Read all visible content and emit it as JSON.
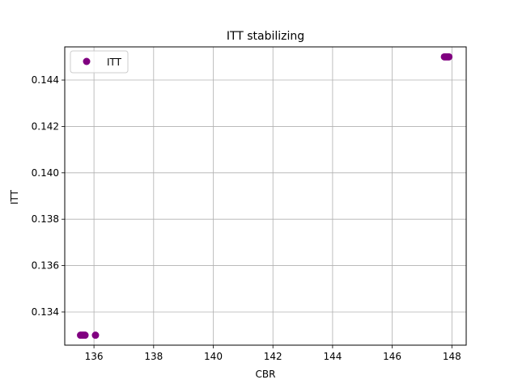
{
  "chart_data": {
    "type": "scatter",
    "title": "ITT stabilizing",
    "xlabel": "CBR",
    "ylabel": "ITT",
    "xlim": [
      135.02,
      148.48
    ],
    "ylim": [
      0.13257,
      0.14543
    ],
    "xticks": [
      136,
      138,
      140,
      142,
      144,
      146,
      148
    ],
    "xtick_labels": [
      "136",
      "138",
      "140",
      "142",
      "144",
      "146",
      "148"
    ],
    "yticks": [
      0.134,
      0.136,
      0.138,
      0.14,
      0.142,
      0.144
    ],
    "ytick_labels": [
      "0.134",
      "0.136",
      "0.138",
      "0.140",
      "0.142",
      "0.144"
    ],
    "grid": true,
    "legend": {
      "placement": "top-left",
      "entries": [
        "ITT"
      ]
    },
    "series": [
      {
        "name": "ITT",
        "color": "#800080",
        "marker": "circle",
        "points": [
          {
            "x": 135.55,
            "y": 0.133
          },
          {
            "x": 135.6,
            "y": 0.133
          },
          {
            "x": 135.65,
            "y": 0.133
          },
          {
            "x": 135.7,
            "y": 0.133
          },
          {
            "x": 136.05,
            "y": 0.133
          },
          {
            "x": 147.75,
            "y": 0.145
          },
          {
            "x": 147.8,
            "y": 0.145
          },
          {
            "x": 147.85,
            "y": 0.145
          },
          {
            "x": 147.9,
            "y": 0.145
          }
        ]
      }
    ]
  }
}
